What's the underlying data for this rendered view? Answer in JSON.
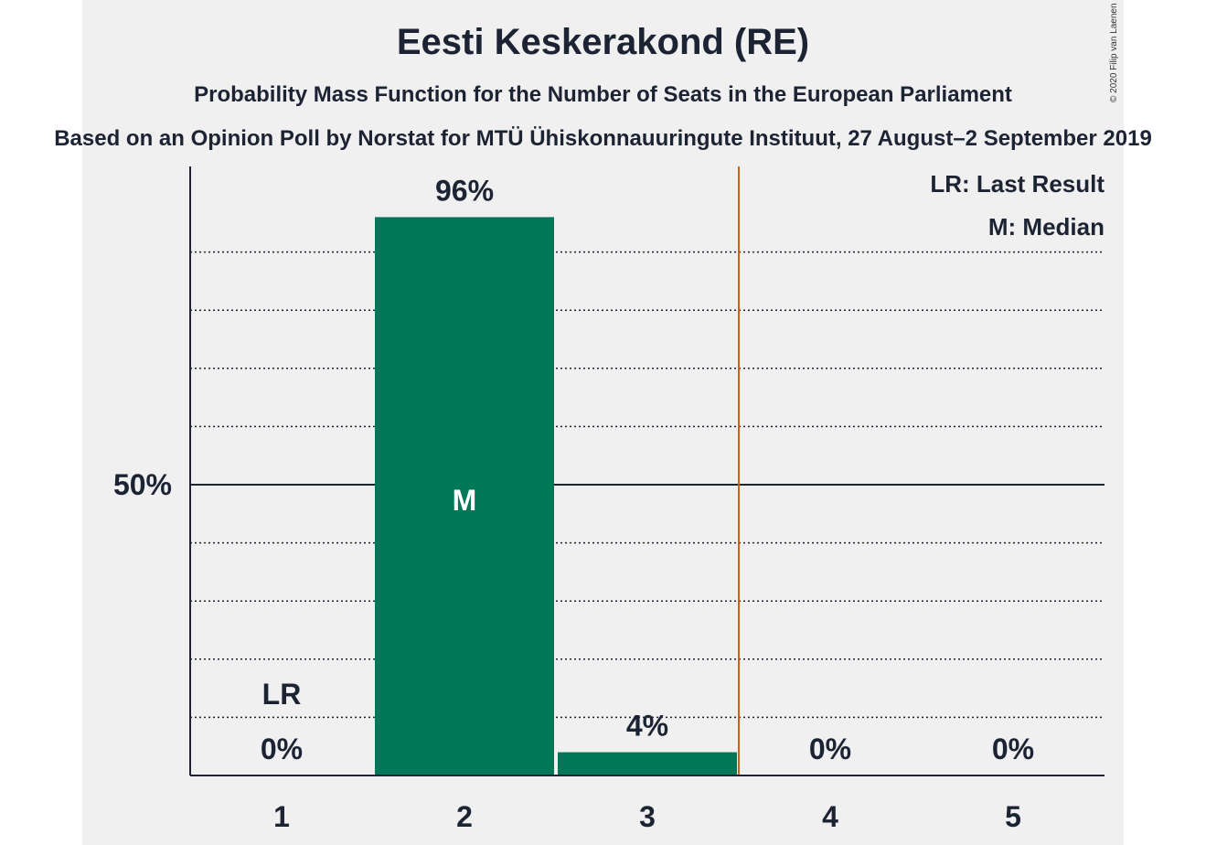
{
  "header": {
    "title": "Eesti Keskerakond (RE)",
    "subtitle": "Probability Mass Function for the Number of Seats in the European Parliament",
    "subtitle2": "Based on an Opinion Poll by Norstat for MTÜ Ühiskonnauuringute Instituut, 27 August–2 September 2019",
    "copyright": "© 2020 Filip van Laenen"
  },
  "chart_data": {
    "type": "bar",
    "categories": [
      "1",
      "2",
      "3",
      "4",
      "5"
    ],
    "values": [
      0,
      96,
      4,
      0,
      0
    ],
    "value_labels": [
      "0%",
      "96%",
      "4%",
      "0%",
      "0%"
    ],
    "ylim": [
      0,
      105
    ],
    "ytick_label": "50%",
    "ytick_value": 50,
    "minor_grid_step": 10,
    "last_result_category": "1",
    "last_result_label": "LR",
    "median_category": "2",
    "median_label": "M",
    "majority_threshold_between": [
      "3",
      "4"
    ],
    "legend": [
      "LR: Last Result",
      "M: Median"
    ],
    "legend_position": "top-right",
    "colors": {
      "bar": "#007756",
      "threshold_line": "#c8641e",
      "text": "#1c2333",
      "grid": "#1c2333"
    }
  }
}
